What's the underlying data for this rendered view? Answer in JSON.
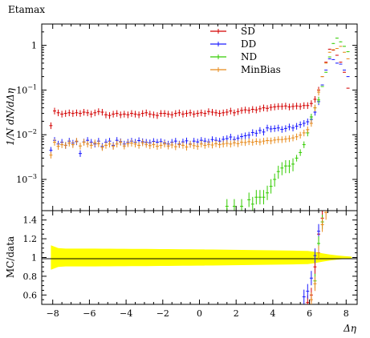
{
  "chart_data": {
    "type": "scatter",
    "title": "Etamax",
    "xlabel": "Δη",
    "top_panel": {
      "ylabel": "1/N dN/dΔη",
      "yscale": "log",
      "ylim": [
        0.0002,
        3
      ],
      "yticks": [
        {
          "v": 0.001,
          "base": "10",
          "exp": "−3"
        },
        {
          "v": 0.01,
          "base": "10",
          "exp": "−2"
        },
        {
          "v": 0.1,
          "base": "10",
          "exp": "−1"
        },
        {
          "v": 1,
          "base": "1",
          "exp": ""
        }
      ],
      "legend_position": "top-right",
      "series": [
        {
          "name": "SD",
          "color": "#d40000",
          "x": [
            -8.1,
            -7.9,
            -7.7,
            -7.5,
            -7.3,
            -7.1,
            -6.9,
            -6.7,
            -6.5,
            -6.3,
            -6.1,
            -5.9,
            -5.7,
            -5.5,
            -5.3,
            -5.1,
            -4.9,
            -4.7,
            -4.5,
            -4.3,
            -4.1,
            -3.9,
            -3.7,
            -3.5,
            -3.3,
            -3.1,
            -2.9,
            -2.7,
            -2.5,
            -2.3,
            -2.1,
            -1.9,
            -1.7,
            -1.5,
            -1.3,
            -1.1,
            -0.9,
            -0.7,
            -0.5,
            -0.3,
            -0.1,
            0.1,
            0.3,
            0.5,
            0.7,
            0.9,
            1.1,
            1.3,
            1.5,
            1.7,
            1.9,
            2.1,
            2.3,
            2.5,
            2.7,
            2.9,
            3.1,
            3.3,
            3.5,
            3.7,
            3.9,
            4.1,
            4.3,
            4.5,
            4.7,
            4.9,
            5.1,
            5.3,
            5.5,
            5.7,
            5.9,
            6.1,
            6.3,
            6.5,
            6.7,
            6.9,
            7.1,
            7.3,
            7.5,
            7.7,
            7.9,
            8.1
          ],
          "y": [
            0.016,
            0.034,
            0.031,
            0.029,
            0.03,
            0.031,
            0.03,
            0.031,
            0.03,
            0.032,
            0.031,
            0.029,
            0.031,
            0.033,
            0.032,
            0.028,
            0.027,
            0.029,
            0.03,
            0.028,
            0.029,
            0.028,
            0.03,
            0.029,
            0.028,
            0.03,
            0.031,
            0.029,
            0.028,
            0.027,
            0.03,
            0.03,
            0.029,
            0.028,
            0.03,
            0.031,
            0.029,
            0.03,
            0.031,
            0.029,
            0.03,
            0.031,
            0.03,
            0.033,
            0.032,
            0.031,
            0.03,
            0.031,
            0.032,
            0.034,
            0.031,
            0.033,
            0.035,
            0.036,
            0.035,
            0.037,
            0.036,
            0.038,
            0.04,
            0.039,
            0.041,
            0.042,
            0.043,
            0.043,
            0.044,
            0.042,
            0.043,
            0.044,
            0.043,
            0.045,
            0.045,
            0.05,
            0.062,
            0.1,
            0.2,
            0.42,
            0.82,
            0.78,
            0.6,
            0.42,
            0.25,
            0.11
          ]
        },
        {
          "name": "DD",
          "color": "#1a1aff",
          "x": [
            -8.1,
            -7.9,
            -7.7,
            -7.5,
            -7.3,
            -7.1,
            -6.9,
            -6.7,
            -6.5,
            -6.3,
            -6.1,
            -5.9,
            -5.7,
            -5.5,
            -5.3,
            -5.1,
            -4.9,
            -4.7,
            -4.5,
            -4.3,
            -4.1,
            -3.9,
            -3.7,
            -3.5,
            -3.3,
            -3.1,
            -2.9,
            -2.7,
            -2.5,
            -2.3,
            -2.1,
            -1.9,
            -1.7,
            -1.5,
            -1.3,
            -1.1,
            -0.9,
            -0.7,
            -0.5,
            -0.3,
            -0.1,
            0.1,
            0.3,
            0.5,
            0.7,
            0.9,
            1.1,
            1.3,
            1.5,
            1.7,
            1.9,
            2.1,
            2.3,
            2.5,
            2.7,
            2.9,
            3.1,
            3.3,
            3.5,
            3.7,
            3.9,
            4.1,
            4.3,
            4.5,
            4.7,
            4.9,
            5.1,
            5.3,
            5.5,
            5.7,
            5.9,
            6.1,
            6.3,
            6.5,
            6.7,
            6.9,
            7.1,
            7.3,
            7.5,
            7.7,
            7.9,
            8.1
          ],
          "y": [
            0.0045,
            0.0075,
            0.0062,
            0.0068,
            0.0058,
            0.0072,
            0.0065,
            0.007,
            0.0038,
            0.0069,
            0.0075,
            0.0068,
            0.0062,
            0.0072,
            0.0055,
            0.0068,
            0.0072,
            0.0058,
            0.0075,
            0.007,
            0.0062,
            0.0068,
            0.0072,
            0.0068,
            0.0074,
            0.007,
            0.0068,
            0.0066,
            0.0071,
            0.0068,
            0.007,
            0.0066,
            0.0062,
            0.0068,
            0.0072,
            0.0062,
            0.0069,
            0.0073,
            0.0062,
            0.0072,
            0.0069,
            0.0075,
            0.0072,
            0.0069,
            0.0078,
            0.0075,
            0.0072,
            0.0079,
            0.0082,
            0.0089,
            0.0078,
            0.0084,
            0.0091,
            0.0095,
            0.0098,
            0.0112,
            0.0108,
            0.0125,
            0.0115,
            0.0142,
            0.0135,
            0.0138,
            0.0142,
            0.0132,
            0.0138,
            0.015,
            0.0142,
            0.0155,
            0.0168,
            0.018,
            0.0195,
            0.022,
            0.032,
            0.055,
            0.13,
            0.28,
            0.5,
            0.48,
            0.4,
            0.38,
            0.28,
            0.2
          ]
        },
        {
          "name": "ND",
          "color": "#33cc00",
          "x": [
            1.5,
            1.9,
            2.3,
            2.7,
            2.9,
            3.1,
            3.3,
            3.5,
            3.7,
            3.9,
            4.1,
            4.3,
            4.5,
            4.7,
            4.9,
            5.1,
            5.3,
            5.5,
            5.7,
            5.9,
            6.1,
            6.3,
            6.5,
            6.7,
            6.9,
            7.1,
            7.3,
            7.5,
            7.7,
            7.9,
            8.1
          ],
          "y": [
            0.00025,
            0.00025,
            0.00025,
            0.00035,
            0.00028,
            0.0004,
            0.0004,
            0.0004,
            0.0005,
            0.0007,
            0.001,
            0.0015,
            0.0018,
            0.002,
            0.002,
            0.0022,
            0.003,
            0.004,
            0.006,
            0.011,
            0.025,
            0.04,
            0.06,
            0.12,
            0.25,
            0.55,
            1.1,
            1.45,
            1.2,
            0.95,
            0.72
          ]
        },
        {
          "name": "MinBias",
          "color": "#e88a1a",
          "x": [
            -8.1,
            -7.9,
            -7.7,
            -7.5,
            -7.3,
            -7.1,
            -6.9,
            -6.7,
            -6.5,
            -6.3,
            -6.1,
            -5.9,
            -5.7,
            -5.5,
            -5.3,
            -5.1,
            -4.9,
            -4.7,
            -4.5,
            -4.3,
            -4.1,
            -3.9,
            -3.7,
            -3.5,
            -3.3,
            -3.1,
            -2.9,
            -2.7,
            -2.5,
            -2.3,
            -2.1,
            -1.9,
            -1.7,
            -1.5,
            -1.3,
            -1.1,
            -0.9,
            -0.7,
            -0.5,
            -0.3,
            -0.1,
            0.1,
            0.3,
            0.5,
            0.7,
            0.9,
            1.1,
            1.3,
            1.5,
            1.7,
            1.9,
            2.1,
            2.3,
            2.5,
            2.7,
            2.9,
            3.1,
            3.3,
            3.5,
            3.7,
            3.9,
            4.1,
            4.3,
            4.5,
            4.7,
            4.9,
            5.1,
            5.3,
            5.5,
            5.7,
            5.9,
            6.1,
            6.3,
            6.5,
            6.7,
            6.9,
            7.1,
            7.3,
            7.5,
            7.7,
            7.9,
            8.1
          ],
          "y": [
            0.0035,
            0.0068,
            0.0055,
            0.006,
            0.0058,
            0.0065,
            0.006,
            0.0072,
            0.0056,
            0.0068,
            0.0062,
            0.0058,
            0.0066,
            0.0063,
            0.0052,
            0.0058,
            0.0062,
            0.0055,
            0.0062,
            0.0068,
            0.0056,
            0.0063,
            0.0065,
            0.0062,
            0.0058,
            0.0066,
            0.0061,
            0.0057,
            0.006,
            0.0055,
            0.0058,
            0.0062,
            0.0056,
            0.0059,
            0.0054,
            0.006,
            0.0058,
            0.0053,
            0.0061,
            0.0057,
            0.0055,
            0.0062,
            0.0058,
            0.0061,
            0.0059,
            0.0063,
            0.006,
            0.0062,
            0.0064,
            0.0062,
            0.0066,
            0.0063,
            0.0068,
            0.0067,
            0.007,
            0.0068,
            0.0071,
            0.0069,
            0.0072,
            0.0074,
            0.0073,
            0.0076,
            0.0078,
            0.0078,
            0.008,
            0.0082,
            0.0085,
            0.009,
            0.0098,
            0.011,
            0.013,
            0.018,
            0.04,
            0.09,
            0.2,
            0.4,
            0.7,
            0.8,
            0.85,
            0.95,
            0.7,
            0.5
          ]
        }
      ]
    },
    "ratio_panel": {
      "ylabel": "MC/data",
      "ylim": [
        0.5,
        1.5
      ],
      "yticks": [
        0.6,
        0.8,
        1,
        1.2,
        1.4
      ],
      "band_color": "#ffff00",
      "band_x": [
        -8.1,
        -7.7,
        -7.3,
        -6.9,
        -6.5,
        -6.1,
        -5.7,
        -5.3,
        -4.9,
        -4.5,
        -4.1,
        -3.7,
        -3.3,
        -2.9,
        -2.5,
        -2.1,
        -1.7,
        -1.3,
        -0.9,
        -0.5,
        -0.1,
        0.3,
        0.7,
        1.1,
        1.5,
        1.9,
        2.3,
        2.7,
        3.1,
        3.5,
        3.9,
        4.3,
        4.7,
        5.1,
        5.5,
        5.9,
        6.3,
        6.7,
        7.1,
        7.5,
        7.9,
        8.3
      ],
      "band_halfwidth": [
        0.13,
        0.1,
        0.095,
        0.095,
        0.095,
        0.095,
        0.095,
        0.094,
        0.094,
        0.093,
        0.093,
        0.092,
        0.092,
        0.092,
        0.091,
        0.09,
        0.09,
        0.089,
        0.088,
        0.088,
        0.087,
        0.086,
        0.085,
        0.084,
        0.083,
        0.082,
        0.081,
        0.08,
        0.079,
        0.078,
        0.077,
        0.076,
        0.075,
        0.074,
        0.072,
        0.07,
        0.06,
        0.045,
        0.032,
        0.022,
        0.015,
        0.01
      ],
      "series": [
        {
          "name": "SD",
          "color": "#d40000",
          "x": [
            5.9,
            6.1,
            6.3,
            6.5,
            6.7
          ],
          "y": [
            0.52,
            0.6,
            0.9,
            1.25,
            1.42
          ]
        },
        {
          "name": "DD",
          "color": "#1a1aff",
          "x": [
            5.7,
            5.9,
            6.1,
            6.3,
            6.5
          ],
          "y": [
            0.58,
            0.64,
            0.78,
            1.02,
            1.28
          ]
        },
        {
          "name": "ND",
          "color": "#33cc00",
          "x": [
            6.3,
            6.5,
            6.7
          ],
          "y": [
            0.75,
            1.15,
            1.38
          ]
        },
        {
          "name": "MinBias",
          "color": "#e88a1a",
          "x": [
            6.1,
            6.3,
            6.5,
            6.7,
            6.9
          ],
          "y": [
            0.55,
            0.72,
            1.05,
            1.35,
            1.48
          ]
        }
      ]
    },
    "xlim": [
      -8.6,
      8.6
    ],
    "xticks": [
      -8,
      -6,
      -4,
      -2,
      0,
      2,
      4,
      6,
      8
    ]
  }
}
